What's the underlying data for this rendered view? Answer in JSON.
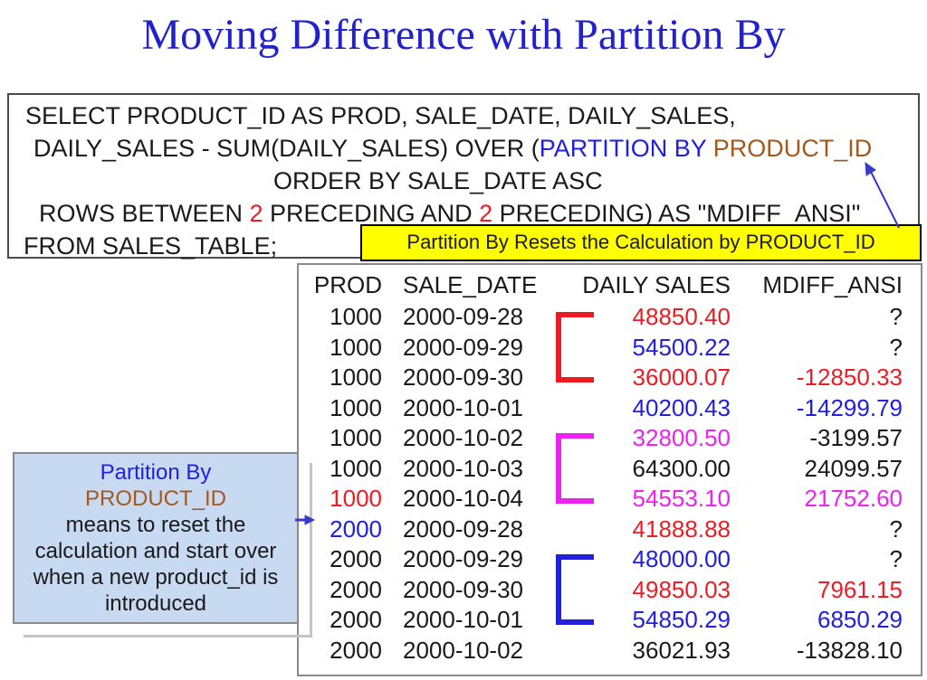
{
  "title": "Moving Difference with Partition By",
  "colors": {
    "black": "#1a1a1a",
    "red": "#ed1c24",
    "blue": "#2020dd",
    "magenta": "#ee22ee",
    "brown": "#a4581c",
    "title": "#2222cc",
    "yellow_bg": "#ffff00",
    "note_bg": "#c8daf2",
    "arrow": "#3a3ac8",
    "border_dark": "#4a4a4a",
    "border_gray": "#8a8a8a",
    "shadow_gray": "#c4c4c4"
  },
  "sql": {
    "lines": [
      {
        "indent": 18,
        "segments": [
          {
            "text": "SELECT PRODUCT_ID AS PROD, SALE_DATE, DAILY_SALES,",
            "color": "black"
          }
        ]
      },
      {
        "indent": 27,
        "segments": [
          {
            "text": "DAILY_SALES - SUM(DAILY_SALES) OVER (",
            "color": "black"
          },
          {
            "text": "PARTITION BY ",
            "color": "blue"
          },
          {
            "text": "PRODUCT_ID",
            "color": "brown"
          }
        ]
      },
      {
        "indent": 292,
        "segments": [
          {
            "text": "ORDER BY SALE_DATE ASC",
            "color": "black"
          }
        ]
      },
      {
        "indent": 33,
        "segments": [
          {
            "text": "ROWS BETWEEN ",
            "color": "black"
          },
          {
            "text": "2",
            "color": "red"
          },
          {
            "text": " PRECEDING AND ",
            "color": "black"
          },
          {
            "text": "2",
            "color": "red"
          },
          {
            "text": " PRECEDING) AS \"MDIFF_ANSI\"",
            "color": "black"
          }
        ]
      },
      {
        "indent": 16,
        "segments": [
          {
            "text": "FROM SALES_TABLE;",
            "color": "black"
          }
        ]
      }
    ]
  },
  "yellow_callout": {
    "text": "Partition By Resets the Calculation by PRODUCT_ID"
  },
  "note_box": {
    "lines": [
      {
        "text": "Partition By",
        "color": "blue"
      },
      {
        "text": "PRODUCT_ID",
        "color": "brown"
      },
      {
        "text": "means to reset the",
        "color": "black"
      },
      {
        "text": "calculation and start over",
        "color": "black"
      },
      {
        "text": "when a new product_id is",
        "color": "black"
      },
      {
        "text": "introduced",
        "color": "black"
      }
    ]
  },
  "table": {
    "headers": [
      "PROD",
      "SALE_DATE",
      "DAILY SALES",
      "MDIFF_ANSI"
    ],
    "rows": [
      {
        "prod": "1000",
        "prod_color": "black",
        "date": "2000-09-28",
        "sales": "48850.40",
        "sales_color": "red",
        "mdiff": "?",
        "mdiff_color": "black"
      },
      {
        "prod": "1000",
        "prod_color": "black",
        "date": "2000-09-29",
        "sales": "54500.22",
        "sales_color": "blue",
        "mdiff": "?",
        "mdiff_color": "black"
      },
      {
        "prod": "1000",
        "prod_color": "black",
        "date": "2000-09-30",
        "sales": "36000.07",
        "sales_color": "red",
        "mdiff": "-12850.33",
        "mdiff_color": "red"
      },
      {
        "prod": "1000",
        "prod_color": "black",
        "date": "2000-10-01",
        "sales": "40200.43",
        "sales_color": "blue",
        "mdiff": "-14299.79",
        "mdiff_color": "blue"
      },
      {
        "prod": "1000",
        "prod_color": "black",
        "date": "2000-10-02",
        "sales": "32800.50",
        "sales_color": "magenta",
        "mdiff": "-3199.57",
        "mdiff_color": "black"
      },
      {
        "prod": "1000",
        "prod_color": "black",
        "date": "2000-10-03",
        "sales": "64300.00",
        "sales_color": "black",
        "mdiff": "24099.57",
        "mdiff_color": "black"
      },
      {
        "prod": "1000",
        "prod_color": "red",
        "date": "2000-10-04",
        "sales": "54553.10",
        "sales_color": "magenta",
        "mdiff": "21752.60",
        "mdiff_color": "magenta"
      },
      {
        "prod": "2000",
        "prod_color": "blue",
        "date": "2000-09-28",
        "sales": "41888.88",
        "sales_color": "red",
        "mdiff": "?",
        "mdiff_color": "black"
      },
      {
        "prod": "2000",
        "prod_color": "black",
        "date": "2000-09-29",
        "sales": "48000.00",
        "sales_color": "blue",
        "mdiff": "?",
        "mdiff_color": "black"
      },
      {
        "prod": "2000",
        "prod_color": "black",
        "date": "2000-09-30",
        "sales": "49850.03",
        "sales_color": "red",
        "mdiff": "7961.15",
        "mdiff_color": "red"
      },
      {
        "prod": "2000",
        "prod_color": "black",
        "date": "2000-10-01",
        "sales": "54850.29",
        "sales_color": "blue",
        "mdiff": "6850.29",
        "mdiff_color": "blue"
      },
      {
        "prod": "2000",
        "prod_color": "black",
        "date": "2000-10-02",
        "sales": "36021.93",
        "sales_color": "black",
        "mdiff": "-13828.10",
        "mdiff_color": "black"
      }
    ]
  },
  "brackets": [
    {
      "color": "red",
      "rows": "1-3",
      "column": "DAILY SALES"
    },
    {
      "color": "magenta",
      "rows": "5-7",
      "column": "DAILY SALES"
    },
    {
      "color": "blue",
      "rows": "9-11",
      "column": "DAILY SALES"
    }
  ],
  "arrows": [
    {
      "name": "yellow-callout-to-product-id",
      "color": "#3a3ac8"
    },
    {
      "name": "note-box-to-prod-2000",
      "color": "#3a3ac8"
    }
  ]
}
